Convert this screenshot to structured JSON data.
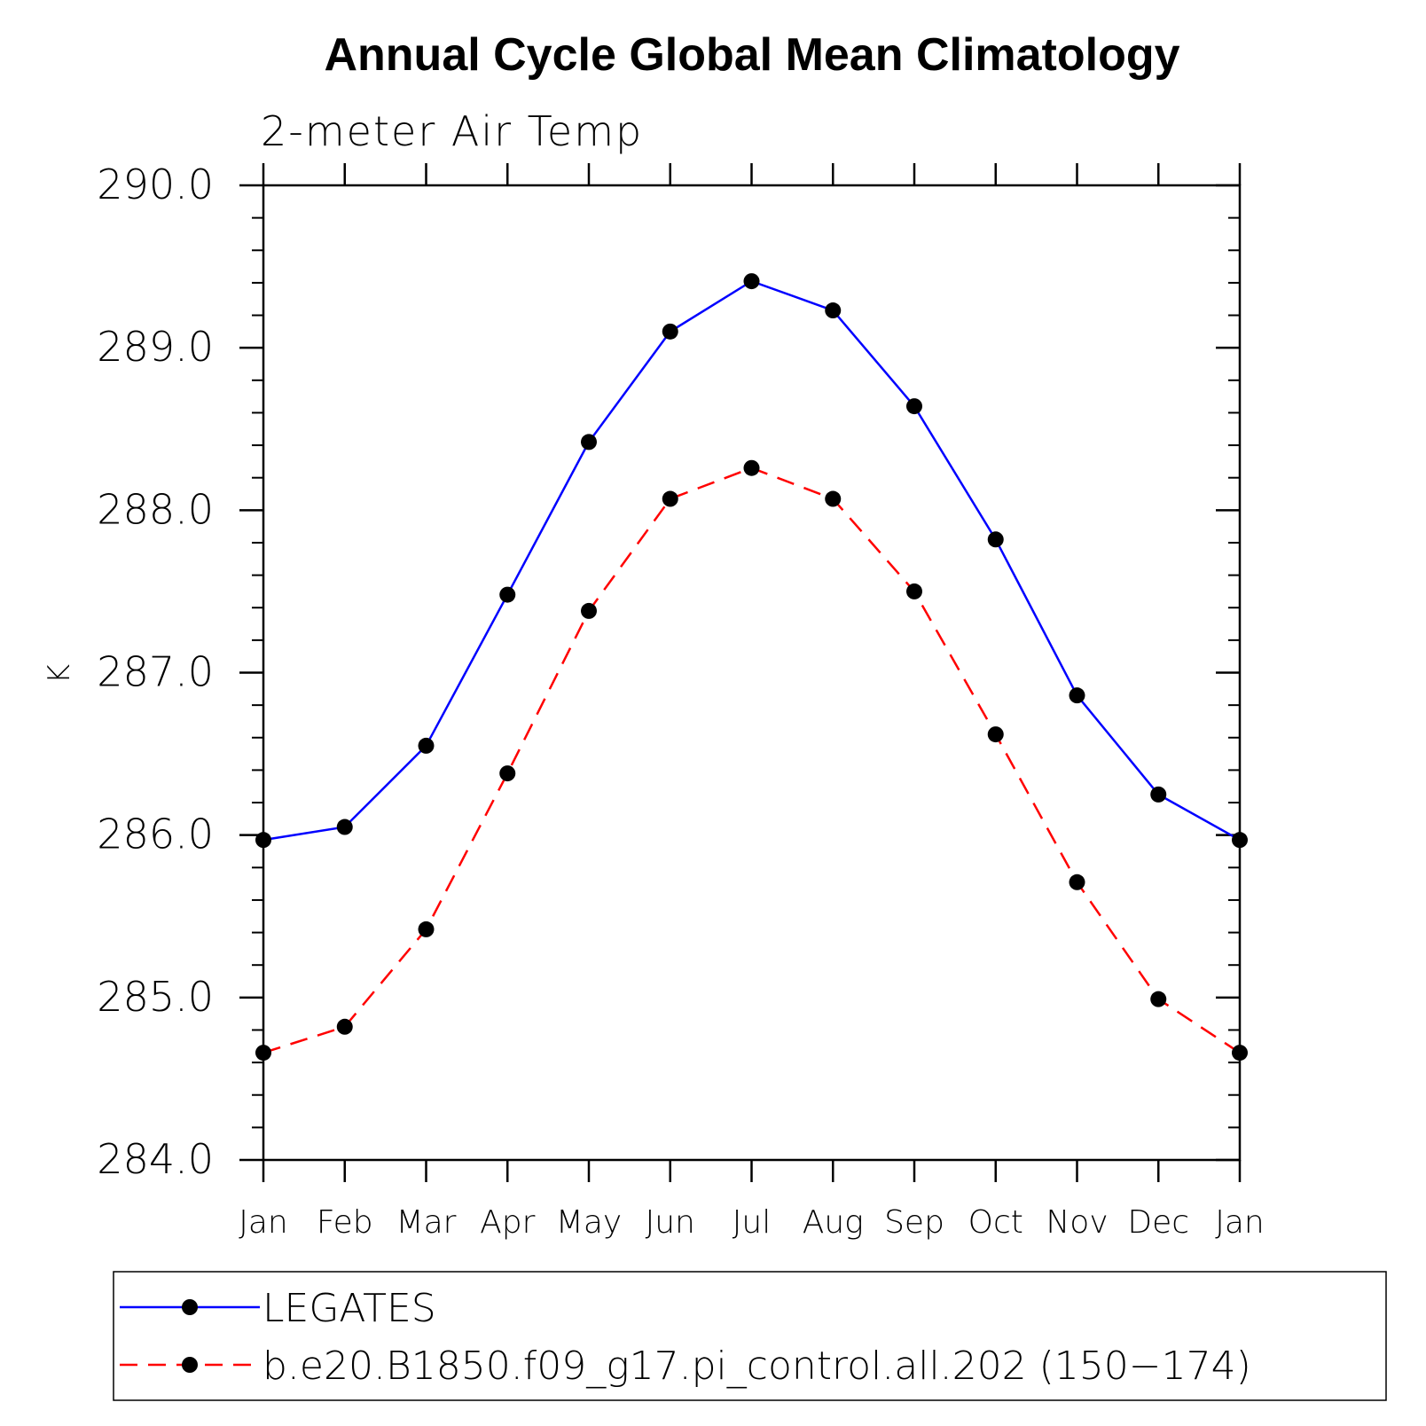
{
  "chart_data": {
    "type": "line",
    "title": "Annual Cycle Global Mean Climatology",
    "subtitle": "2-meter Air Temp",
    "xlabel": "",
    "ylabel": "K",
    "categories": [
      "Jan",
      "Feb",
      "Mar",
      "Apr",
      "May",
      "Jun",
      "Jul",
      "Aug",
      "Sep",
      "Oct",
      "Nov",
      "Dec",
      "Jan"
    ],
    "ylim": [
      284.0,
      290.0
    ],
    "yticks": [
      "284.0",
      "285.0",
      "286.0",
      "287.0",
      "288.0",
      "289.0",
      "290.0"
    ],
    "yminor_step": 0.2,
    "grid": false,
    "legend_position": "bottom",
    "series": [
      {
        "name": "LEGATES",
        "color": "#0000ff",
        "line_style": "solid",
        "marker": "filled-circle",
        "values": [
          285.97,
          286.05,
          286.55,
          287.48,
          288.42,
          289.1,
          289.41,
          289.23,
          288.64,
          287.82,
          286.86,
          286.25,
          285.97
        ]
      },
      {
        "name": "b.e20.B1850.f09_g17.pi_control.all.202 (150−174)",
        "color": "#ff0000",
        "line_style": "dashed",
        "marker": "filled-circle",
        "values": [
          284.66,
          284.82,
          285.42,
          286.38,
          287.38,
          288.07,
          288.26,
          288.07,
          287.5,
          286.62,
          285.71,
          284.99,
          284.66
        ]
      }
    ]
  }
}
